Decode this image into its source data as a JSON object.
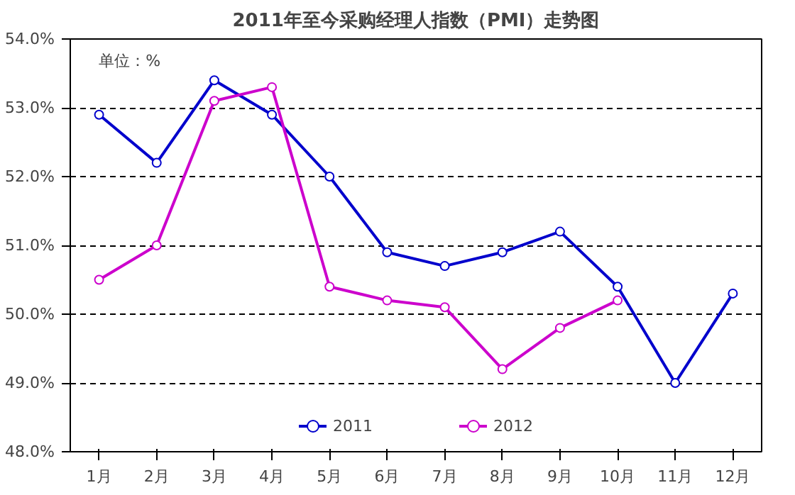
{
  "chart_data": {
    "type": "line",
    "title": "2011年至今采购经理人指数（PMI）走势图",
    "categories": [
      "1月",
      "2月",
      "3月",
      "4月",
      "5月",
      "6月",
      "7月",
      "8月",
      "9月",
      "10月",
      "11月",
      "12月"
    ],
    "series": [
      {
        "name": "2011",
        "color": "#0000cc",
        "values": [
          52.9,
          52.2,
          53.4,
          52.9,
          52.0,
          50.9,
          50.7,
          50.9,
          51.2,
          50.4,
          49.0,
          50.3
        ]
      },
      {
        "name": "2012",
        "color": "#cc00cc",
        "values": [
          50.5,
          51.0,
          53.1,
          53.3,
          50.4,
          50.2,
          50.1,
          49.2,
          49.8,
          50.2,
          null,
          null
        ]
      }
    ],
    "ylim": [
      48,
      54
    ],
    "yticks": [
      {
        "value": 48,
        "label": "48.0%"
      },
      {
        "value": 49,
        "label": "49.0%"
      },
      {
        "value": 50,
        "label": "50.0%"
      },
      {
        "value": 51,
        "label": "51.0%"
      },
      {
        "value": 52,
        "label": "52.0%"
      },
      {
        "value": 53,
        "label": "53.0%"
      },
      {
        "value": 54,
        "label": "54.0%"
      }
    ],
    "annotations": [
      "单位：%"
    ],
    "grid": "y",
    "legend": "bottom",
    "marker": "circle",
    "line_style": "solid"
  }
}
